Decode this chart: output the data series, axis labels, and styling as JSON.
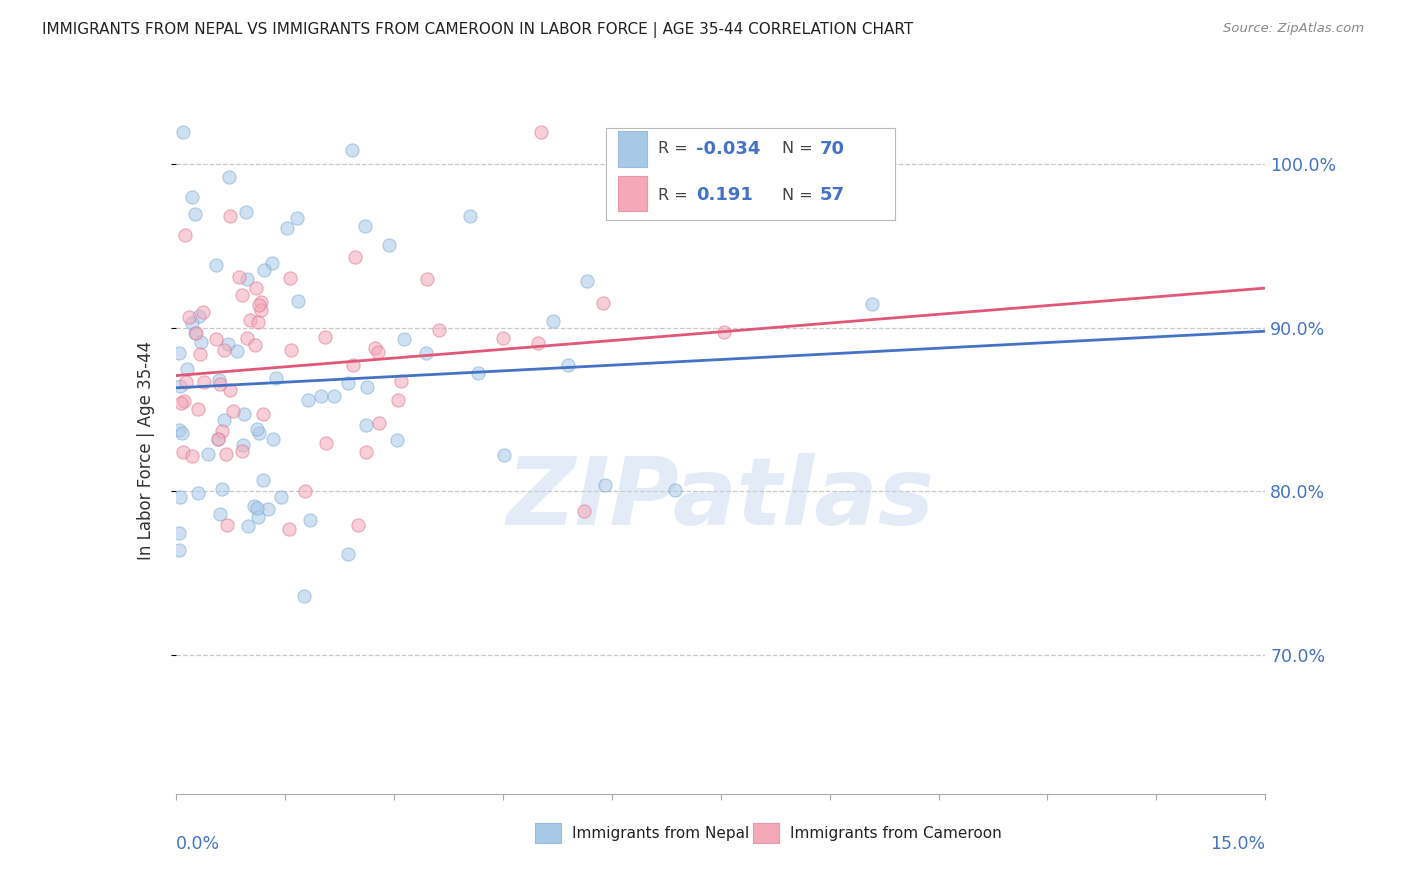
{
  "title": "IMMIGRANTS FROM NEPAL VS IMMIGRANTS FROM CAMEROON IN LABOR FORCE | AGE 35-44 CORRELATION CHART",
  "source": "Source: ZipAtlas.com",
  "ylabel": "In Labor Force | Age 35-44",
  "xlim": [
    0.0,
    0.15
  ],
  "ylim": [
    0.615,
    1.035
  ],
  "nepal_color": "#a8c8e8",
  "cameroon_color": "#f4a8b8",
  "nepal_edge_color": "#7aaad0",
  "cameroon_edge_color": "#e07090",
  "nepal_line_color": "#4472c4",
  "cameroon_line_color": "#e05878",
  "watermark": "ZIPatlas",
  "nepal_R": -0.034,
  "cameroon_R": 0.191,
  "nepal_N": 70,
  "cameroon_N": 57,
  "background_color": "#ffffff",
  "grid_color": "#c8c8c8",
  "title_color": "#222222",
  "right_tick_color": "#4472c4",
  "dot_size": 90,
  "dot_alpha": 0.55,
  "legend_text_color": "#4472c4",
  "legend_r_label_color": "#333333"
}
